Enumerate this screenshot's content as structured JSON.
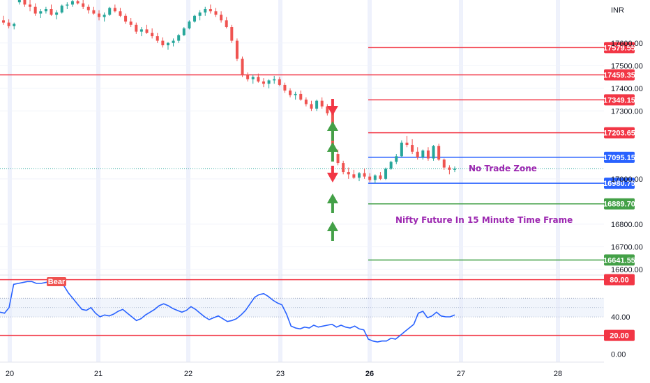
{
  "chart_data": [
    {
      "type": "candlestick",
      "currency": "INR",
      "instrument_note": "Nifty Future In 15 Minute Time Frame",
      "zone_label": "No Trade Zone",
      "x_ticks": [
        "20",
        "21",
        "22",
        "23",
        "26",
        "27",
        "28"
      ],
      "y_ticks": [
        "17600.00",
        "17500.00",
        "17400.00",
        "17300.00",
        "17000.00",
        "16800.00",
        "16700.00",
        "16600.00"
      ],
      "ylim": [
        16575,
        17790
      ],
      "levels": [
        {
          "value": 17579.55,
          "label": "17579.55",
          "color": "#f23645",
          "kind": "resistance"
        },
        {
          "value": 17459.35,
          "label": "17459.35",
          "color": "#f23645",
          "kind": "resistance"
        },
        {
          "value": 17349.15,
          "label": "17349.15",
          "color": "#f23645",
          "kind": "resistance"
        },
        {
          "value": 17203.65,
          "label": "17203.65",
          "color": "#f23645",
          "kind": "resistance"
        },
        {
          "value": 17095.15,
          "label": "17095.15",
          "color": "#2962ff",
          "kind": "zone"
        },
        {
          "value": 16980.75,
          "label": "16980.75",
          "color": "#2962ff",
          "kind": "zone"
        },
        {
          "value": 16889.7,
          "label": "16889.70",
          "color": "#43a047",
          "kind": "support"
        },
        {
          "value": 16641.55,
          "label": "16641.55",
          "color": "#43a047",
          "kind": "support"
        }
      ],
      "series": [
        {
          "name": "",
          "ohlc": [
            [
              17700,
              17720,
              17680,
              17690
            ],
            [
              17690,
              17705,
              17665,
              17675
            ],
            [
              17675,
              17690,
              17660,
              17685
            ],
            [
              17780,
              17800,
              17770,
              17790
            ],
            [
              17790,
              17800,
              17760,
              17770
            ],
            [
              17770,
              17790,
              17740,
              17760
            ],
            [
              17760,
              17775,
              17720,
              17730
            ],
            [
              17730,
              17750,
              17710,
              17740
            ],
            [
              17740,
              17760,
              17730,
              17750
            ],
            [
              17750,
              17770,
              17720,
              17725
            ],
            [
              17725,
              17745,
              17705,
              17735
            ],
            [
              17735,
              17770,
              17730,
              17765
            ],
            [
              17765,
              17780,
              17750,
              17770
            ],
            [
              17770,
              17790,
              17760,
              17785
            ],
            [
              17785,
              17800,
              17770,
              17775
            ],
            [
              17775,
              17790,
              17750,
              17760
            ],
            [
              17760,
              17770,
              17730,
              17745
            ],
            [
              17745,
              17760,
              17725,
              17730
            ],
            [
              17730,
              17745,
              17700,
              17715
            ],
            [
              17715,
              17735,
              17695,
              17725
            ],
            [
              17725,
              17760,
              17720,
              17755
            ],
            [
              17755,
              17770,
              17735,
              17740
            ],
            [
              17740,
              17755,
              17715,
              17720
            ],
            [
              17720,
              17730,
              17685,
              17695
            ],
            [
              17695,
              17710,
              17670,
              17680
            ],
            [
              17680,
              17690,
              17640,
              17650
            ],
            [
              17650,
              17670,
              17630,
              17660
            ],
            [
              17660,
              17680,
              17640,
              17645
            ],
            [
              17645,
              17665,
              17620,
              17630
            ],
            [
              17630,
              17645,
              17600,
              17610
            ],
            [
              17610,
              17625,
              17580,
              17590
            ],
            [
              17590,
              17605,
              17570,
              17600
            ],
            [
              17600,
              17620,
              17585,
              17610
            ],
            [
              17610,
              17640,
              17600,
              17635
            ],
            [
              17635,
              17670,
              17630,
              17665
            ],
            [
              17665,
              17700,
              17660,
              17695
            ],
            [
              17695,
              17725,
              17690,
              17720
            ],
            [
              17720,
              17745,
              17700,
              17735
            ],
            [
              17735,
              17760,
              17720,
              17750
            ],
            [
              17750,
              17770,
              17730,
              17740
            ],
            [
              17740,
              17755,
              17715,
              17725
            ],
            [
              17725,
              17740,
              17690,
              17700
            ],
            [
              17700,
              17715,
              17665,
              17670
            ],
            [
              17670,
              17680,
              17600,
              17610
            ],
            [
              17610,
              17620,
              17520,
              17530
            ],
            [
              17530,
              17540,
              17450,
              17460
            ],
            [
              17460,
              17470,
              17430,
              17440
            ],
            [
              17440,
              17460,
              17420,
              17450
            ],
            [
              17450,
              17465,
              17425,
              17430
            ],
            [
              17430,
              17445,
              17405,
              17420
            ],
            [
              17420,
              17440,
              17400,
              17435
            ],
            [
              17435,
              17455,
              17420,
              17440
            ],
            [
              17440,
              17450,
              17410,
              17415
            ],
            [
              17415,
              17425,
              17380,
              17390
            ],
            [
              17390,
              17400,
              17360,
              17370
            ],
            [
              17370,
              17385,
              17350,
              17375
            ],
            [
              17375,
              17390,
              17345,
              17350
            ],
            [
              17350,
              17360,
              17320,
              17330
            ],
            [
              17330,
              17345,
              17300,
              17310
            ],
            [
              17310,
              17350,
              17300,
              17345
            ],
            [
              17345,
              17360,
              17310,
              17320
            ],
            [
              17320,
              17330,
              17280,
              17290
            ],
            [
              17290,
              17300,
              17100,
              17110
            ],
            [
              17110,
              17130,
              17060,
              17070
            ],
            [
              17070,
              17080,
              17020,
              17030
            ],
            [
              17030,
              17050,
              17000,
              17020
            ],
            [
              17020,
              17040,
              17000,
              17005
            ],
            [
              17005,
              17030,
              16990,
              17025
            ],
            [
              17025,
              17045,
              17000,
              17010
            ],
            [
              17010,
              17025,
              16985,
              16995
            ],
            [
              16995,
              17020,
              16980,
              17015
            ],
            [
              17015,
              17030,
              16995,
              17000
            ],
            [
              17000,
              17050,
              16995,
              17045
            ],
            [
              17045,
              17080,
              17040,
              17075
            ],
            [
              17075,
              17110,
              17065,
              17100
            ],
            [
              17100,
              17170,
              17095,
              17160
            ],
            [
              17160,
              17190,
              17140,
              17150
            ],
            [
              17150,
              17175,
              17110,
              17120
            ],
            [
              17120,
              17140,
              17085,
              17095
            ],
            [
              17095,
              17130,
              17085,
              17125
            ],
            [
              17125,
              17140,
              17080,
              17090
            ],
            [
              17090,
              17150,
              17080,
              17145
            ],
            [
              17145,
              17155,
              17080,
              17085
            ],
            [
              17085,
              17090,
              17040,
              17050
            ],
            [
              17050,
              17060,
              17020,
              17040
            ],
            [
              17040,
              17055,
              17030,
              17045
            ]
          ]
        }
      ],
      "markers": [
        {
          "x_index": 62,
          "type": "sell",
          "color": "#f23645"
        },
        {
          "x_index": 62,
          "type": "buy",
          "color": "#43a047"
        },
        {
          "x_index": 62,
          "type": "buy",
          "color": "#43a047"
        },
        {
          "x_index": 62,
          "type": "sell",
          "color": "#f23645"
        },
        {
          "x_index": 62,
          "type": "buy",
          "color": "#43a047"
        },
        {
          "x_index": 62,
          "type": "buy",
          "color": "#43a047"
        }
      ]
    },
    {
      "type": "line",
      "ylim": [
        -5,
        85
      ],
      "y_ticks": [
        "40.00",
        "0.00"
      ],
      "levels": [
        {
          "value": 80,
          "label": "80.00",
          "color": "#f23645"
        },
        {
          "value": 20,
          "label": "20.00",
          "color": "#f23645"
        }
      ],
      "badge": "Bear",
      "series": [
        {
          "name": "",
          "color": "#2962ff",
          "values": [
            45,
            44,
            50,
            75,
            76,
            77,
            78,
            78,
            76,
            76,
            77,
            78,
            80,
            79,
            74,
            66,
            60,
            54,
            48,
            47,
            50,
            44,
            40,
            42,
            41,
            43,
            46,
            48,
            44,
            40,
            36,
            38,
            42,
            45,
            48,
            52,
            54,
            52,
            49,
            47,
            45,
            47,
            51,
            48,
            44,
            40,
            37,
            39,
            41,
            38,
            35,
            36,
            38,
            42,
            47,
            54,
            61,
            64,
            65,
            62,
            58,
            55,
            53,
            43,
            30,
            28,
            27,
            29,
            28,
            31,
            29,
            30,
            31,
            32,
            29,
            31,
            29,
            28,
            30,
            27,
            26,
            16,
            14,
            13,
            14,
            14,
            17,
            16,
            20,
            24,
            28,
            32,
            44,
            46,
            39,
            41,
            45,
            41,
            40,
            40,
            42
          ]
        }
      ]
    }
  ],
  "colors": {
    "bull": "#26a69a",
    "bear": "#ef5350",
    "purple": "#9c27b0",
    "axis_text": "#131722",
    "grid": "#f0f3fa",
    "session": "#eef1fc"
  }
}
